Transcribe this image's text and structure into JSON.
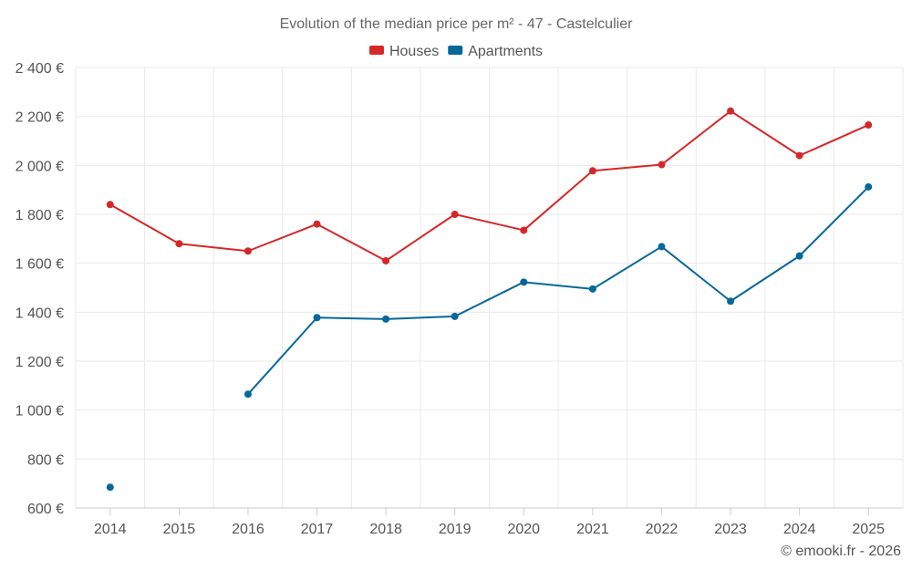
{
  "chart_data": {
    "type": "line",
    "title": "Evolution of the median price per m² - 47 - Castelculier",
    "categories": [
      "2014",
      "2015",
      "2016",
      "2017",
      "2018",
      "2019",
      "2020",
      "2021",
      "2022",
      "2023",
      "2024",
      "2025"
    ],
    "series": [
      {
        "name": "Houses",
        "color": "#d62728",
        "values": [
          1840,
          1680,
          1650,
          1760,
          1610,
          1800,
          1735,
          1978,
          2003,
          2222,
          2040,
          2165
        ]
      },
      {
        "name": "Apartments",
        "color": "#06689a",
        "values": [
          685,
          null,
          1065,
          1378,
          1372,
          1383,
          1523,
          1495,
          1668,
          1445,
          1630,
          1912
        ]
      }
    ],
    "ylim": [
      600,
      2400
    ],
    "yticks": [
      600,
      800,
      1000,
      1200,
      1400,
      1600,
      1800,
      2000,
      2200,
      2400
    ],
    "ytick_labels": [
      "600 €",
      "800 €",
      "1 000 €",
      "1 200 €",
      "1 400 €",
      "1 600 €",
      "1 800 €",
      "2 000 €",
      "2 200 €",
      "2 400 €"
    ],
    "grid": true,
    "legend_position": "top-center",
    "xlabel": "",
    "ylabel": ""
  },
  "credit": "© emooki.fr - 2026"
}
